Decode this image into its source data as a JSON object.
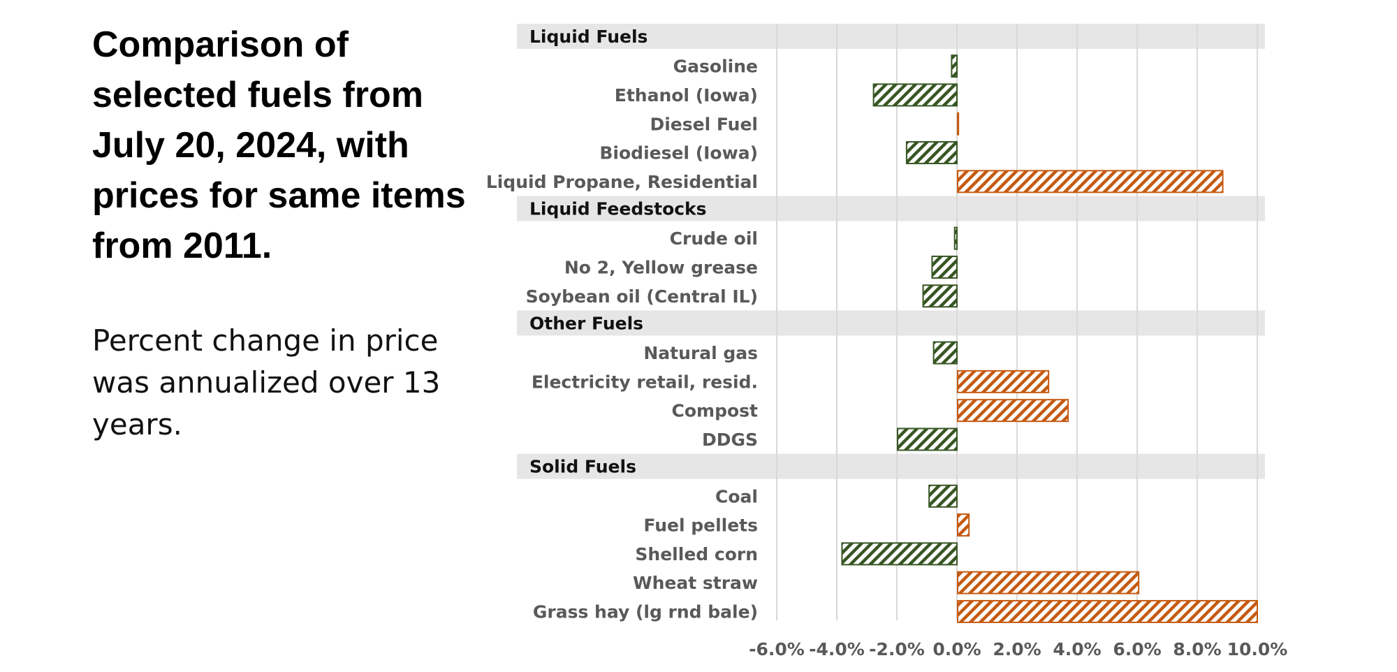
{
  "left": {
    "title": "Comparison of selected fuels from July 20, 2024, with prices for same items from 2011.",
    "subtitle": "Percent change in price was annualized over 13 years."
  },
  "colors": {
    "positive": "#C55A11",
    "negative": "#375623",
    "group_band": "#E7E6E6",
    "gridline": "#D9D9D9",
    "label_text": "#595959"
  },
  "chart_data": {
    "type": "bar",
    "orientation": "horizontal",
    "pattern": "diagonal-hatch",
    "xlim": [
      -6.0,
      10.0
    ],
    "xticks": [
      "-6.0%",
      "-4.0%",
      "-2.0%",
      "0.0%",
      "2.0%",
      "4.0%",
      "6.0%",
      "8.0%",
      "10.0%"
    ],
    "grid": true,
    "groups": [
      {
        "name": "Liquid Fuels",
        "items": [
          {
            "label": "Gasoline",
            "value": -0.2
          },
          {
            "label": "Ethanol (Iowa)",
            "value": -2.8
          },
          {
            "label": "Diesel Fuel",
            "value": 0.05
          },
          {
            "label": "Biodiesel (Iowa)",
            "value": -1.7
          },
          {
            "label": "Liquid Propane, Residential",
            "value": 8.85
          }
        ]
      },
      {
        "name": "Liquid Feedstocks",
        "items": [
          {
            "label": "Crude oil",
            "value": -0.1
          },
          {
            "label": "No 2, Yellow grease",
            "value": -0.85
          },
          {
            "label": "Soybean oil (Central IL)",
            "value": -1.15
          }
        ]
      },
      {
        "name": "Other Fuels",
        "items": [
          {
            "label": "Natural gas",
            "value": -0.8
          },
          {
            "label": "Electricity retail, resid.",
            "value": 3.05
          },
          {
            "label": "Compost",
            "value": 3.7
          },
          {
            "label": "DDGS",
            "value": -2.0
          }
        ]
      },
      {
        "name": "Solid Fuels",
        "items": [
          {
            "label": "Coal",
            "value": -0.95
          },
          {
            "label": "Fuel pellets",
            "value": 0.4
          },
          {
            "label": "Shelled corn",
            "value": -3.85
          },
          {
            "label": "Wheat straw",
            "value": 6.05
          },
          {
            "label": "Grass hay (lg rnd bale)",
            "value": 10.0
          }
        ]
      }
    ]
  }
}
